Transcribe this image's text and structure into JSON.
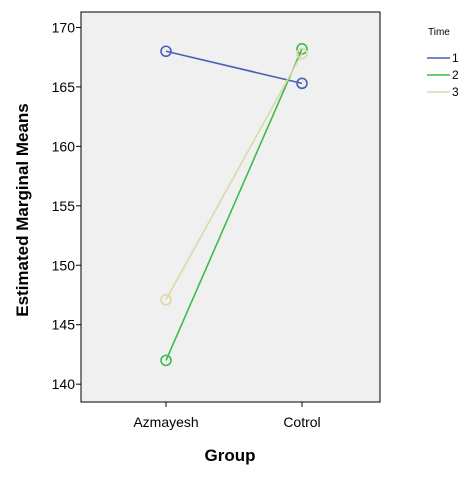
{
  "chart_data": {
    "type": "line",
    "xlabel": "Group",
    "ylabel": "Estimated Marginal Means",
    "categories": [
      "Azmayesh",
      "Cotrol"
    ],
    "ylim": [
      138.5,
      171.3
    ],
    "yticks": [
      140,
      145,
      150,
      155,
      160,
      165,
      170
    ],
    "grid": false,
    "legend_title": "Time",
    "legend_position": "right",
    "plot_background": "#f0f0f0",
    "series": [
      {
        "name": "1",
        "color": "#4a5fb5",
        "values": [
          168.0,
          165.3
        ]
      },
      {
        "name": "2",
        "color": "#3dbb4a",
        "values": [
          142.0,
          168.2
        ]
      },
      {
        "name": "3",
        "color": "#ddd8a8",
        "values": [
          147.1,
          167.8
        ]
      }
    ]
  }
}
